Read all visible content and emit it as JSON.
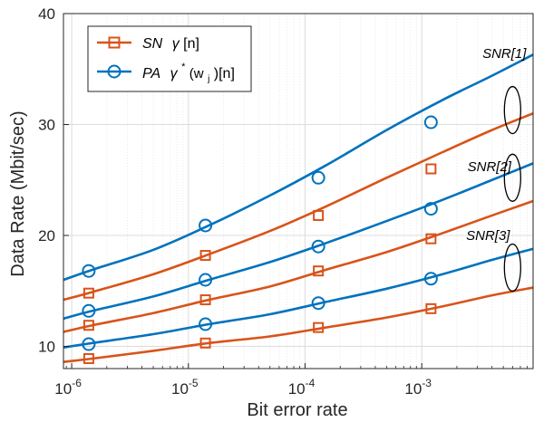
{
  "chart_data": {
    "type": "line",
    "xscale": "log",
    "xlabel": "Bit error rate",
    "ylabel": "Data Rate (Mbit/sec)",
    "xlim": [
      8.5e-07,
      0.009
    ],
    "ylim": [
      8,
      40
    ],
    "xticks": [
      {
        "value": 1e-06,
        "base": "10",
        "exp": "-6"
      },
      {
        "value": 1e-05,
        "base": "10",
        "exp": "-5"
      },
      {
        "value": 0.0001,
        "base": "10",
        "exp": "-4"
      },
      {
        "value": 0.001,
        "base": "10",
        "exp": "-3"
      }
    ],
    "yticks": [
      10,
      20,
      30,
      40
    ],
    "grid": true,
    "legend_position": "top-left",
    "colors": {
      "sn": "#d95319",
      "pa": "#0072bd"
    },
    "legend": [
      {
        "series_type": "sn",
        "marker": "square",
        "name_italic": "SN",
        "formula": "γ[n]"
      },
      {
        "series_type": "pa",
        "marker": "circle",
        "name_italic": "PA",
        "formula": "γ*(wj)[n]"
      }
    ],
    "legend_formula_parts": {
      "sn_gamma": "γ",
      "sn_rest": "[n]",
      "pa_gamma": "γ",
      "pa_star": "*",
      "pa_w": "(w",
      "pa_sub": "j",
      "pa_rest": ")[n]"
    },
    "curve_x": [
      8.5e-07,
      1.5e-06,
      5e-06,
      1.5e-05,
      5e-05,
      0.00015,
      0.0005,
      0.0015,
      0.004,
      0.009
    ],
    "marker_x": [
      1.4e-06,
      1.4e-05,
      0.00013,
      0.0012
    ],
    "series": [
      {
        "group": "SNR[1]",
        "series_type": "pa",
        "curve_y": [
          16.0,
          16.9,
          18.7,
          20.9,
          23.6,
          26.3,
          29.5,
          32.2,
          34.4,
          36.3
        ],
        "marker_y": [
          16.8,
          20.9,
          25.2,
          30.2
        ]
      },
      {
        "group": "SNR[1]",
        "series_type": "sn",
        "curve_y": [
          14.2,
          14.9,
          16.5,
          18.3,
          20.4,
          22.6,
          25.2,
          27.5,
          29.5,
          31.0
        ],
        "marker_y": [
          14.8,
          18.2,
          21.8,
          26.0
        ]
      },
      {
        "group": "SNR[2]",
        "series_type": "pa",
        "curve_y": [
          12.5,
          13.2,
          14.5,
          16.0,
          17.6,
          19.3,
          21.3,
          23.2,
          25.0,
          26.5
        ],
        "marker_y": [
          13.2,
          16.0,
          19.0,
          22.4
        ]
      },
      {
        "group": "SNR[2]",
        "series_type": "sn",
        "curve_y": [
          11.3,
          11.9,
          13.0,
          14.2,
          15.4,
          16.9,
          18.5,
          20.2,
          21.8,
          23.1
        ],
        "marker_y": [
          11.9,
          14.2,
          16.8,
          19.7
        ]
      },
      {
        "group": "SNR[3]",
        "series_type": "pa",
        "curve_y": [
          9.9,
          10.3,
          11.1,
          12.0,
          12.9,
          14.0,
          15.2,
          16.5,
          17.8,
          18.8
        ],
        "marker_y": [
          10.2,
          12.0,
          13.9,
          16.1
        ]
      },
      {
        "group": "SNR[3]",
        "series_type": "sn",
        "curve_y": [
          8.6,
          8.9,
          9.6,
          10.3,
          10.9,
          11.7,
          12.6,
          13.6,
          14.6,
          15.3
        ],
        "marker_y": [
          8.9,
          10.3,
          11.7,
          13.4
        ]
      }
    ],
    "annotations": [
      {
        "text": "SNR[1]",
        "ellipse_x": 0.006,
        "ellipse_y": 31.3,
        "label_x": 0.0051,
        "label_y": 36.0
      },
      {
        "text": "SNR[2]",
        "ellipse_x": 0.006,
        "ellipse_y": 25.2,
        "label_x": 0.0038,
        "label_y": 25.8
      },
      {
        "text": "SNR[3]",
        "ellipse_x": 0.006,
        "ellipse_y": 17.1,
        "label_x": 0.0037,
        "label_y": 19.6
      }
    ]
  }
}
